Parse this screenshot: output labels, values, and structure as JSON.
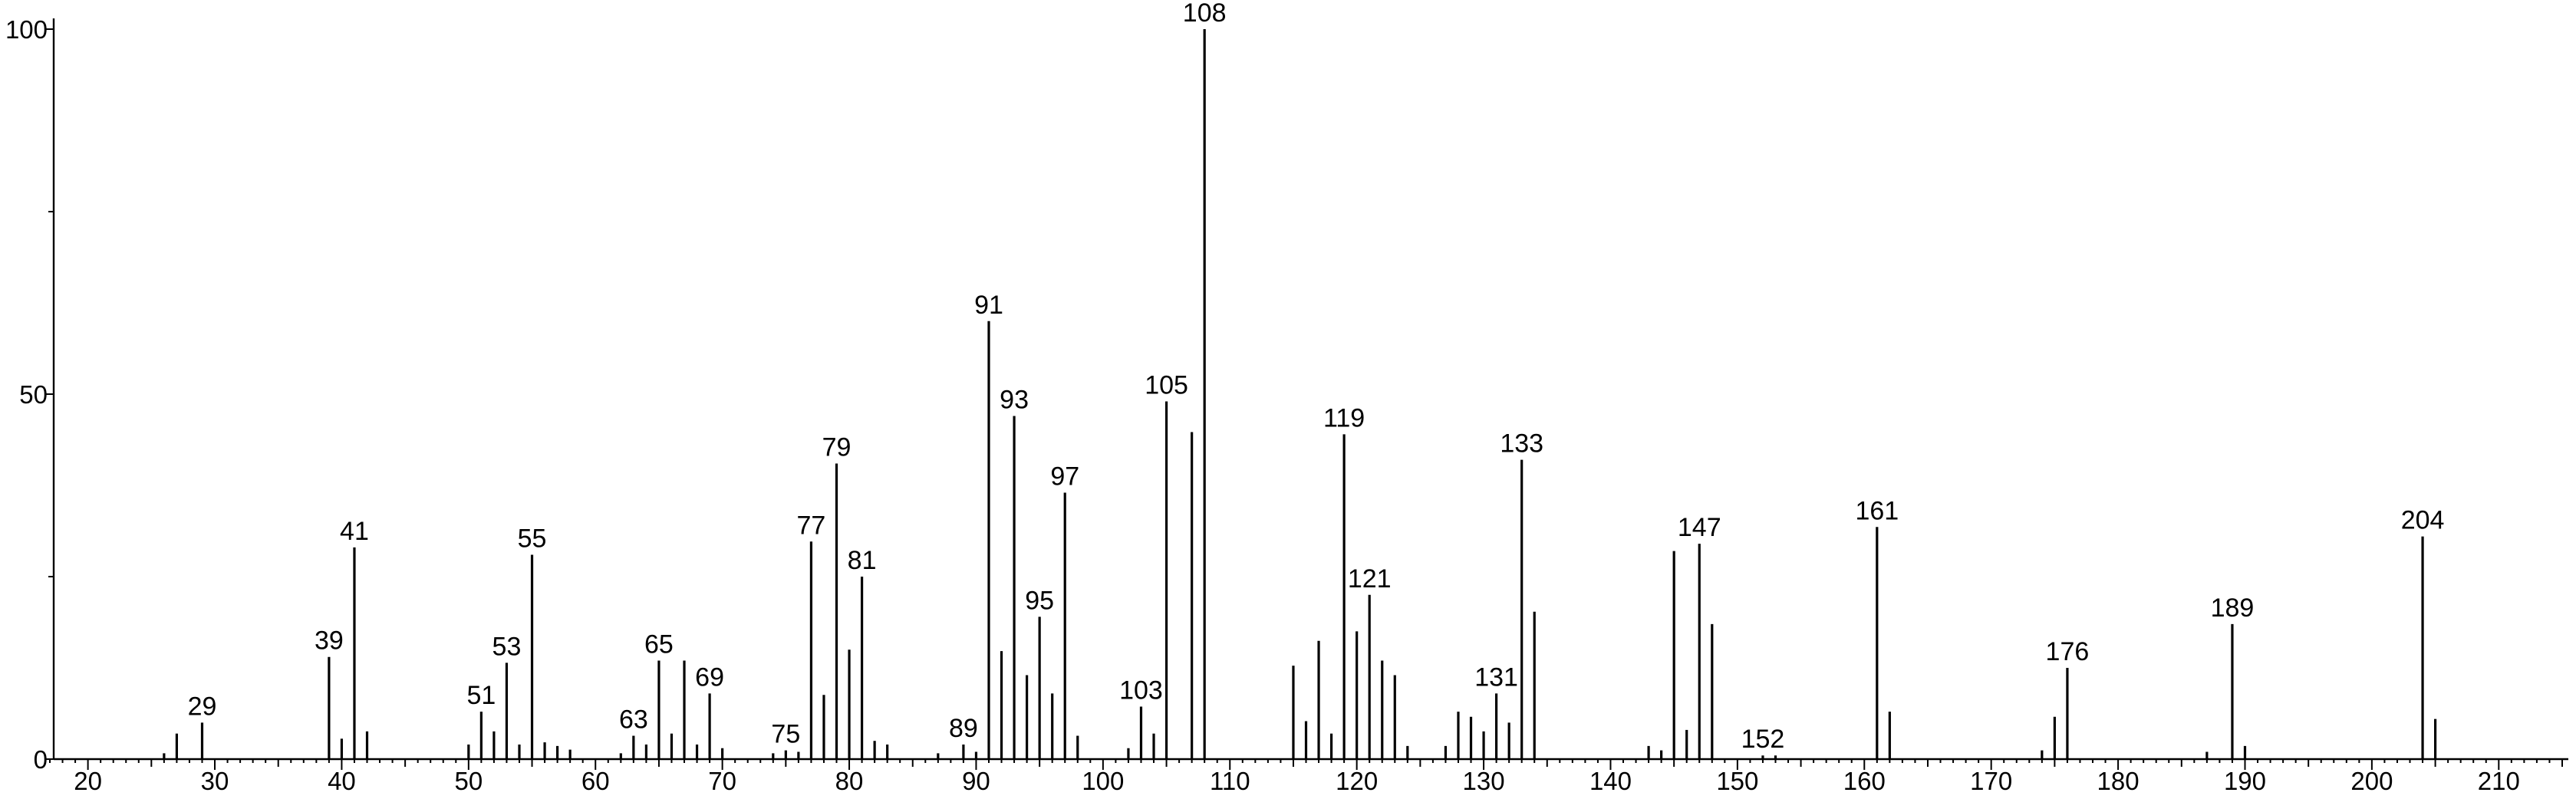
{
  "chart_data": {
    "type": "bar",
    "title": "",
    "xlabel": "",
    "ylabel": "",
    "xlim": [
      17,
      215
    ],
    "ylim": [
      0,
      100
    ],
    "x_ticks": [
      20,
      30,
      40,
      50,
      60,
      70,
      80,
      90,
      100,
      110,
      120,
      130,
      140,
      150,
      160,
      170,
      180,
      190,
      200,
      210
    ],
    "y_ticks": [
      0,
      50,
      100
    ],
    "grid": false,
    "legend": "none",
    "series": [
      {
        "peaks": [
          {
            "x": 26,
            "y": 0.8
          },
          {
            "x": 27,
            "y": 3.5
          },
          {
            "x": 29,
            "y": 5.0
          },
          {
            "x": 39,
            "y": 14.0
          },
          {
            "x": 40,
            "y": 2.8
          },
          {
            "x": 41,
            "y": 29.0
          },
          {
            "x": 42,
            "y": 3.8
          },
          {
            "x": 50,
            "y": 2.0
          },
          {
            "x": 51,
            "y": 6.5
          },
          {
            "x": 52,
            "y": 3.8
          },
          {
            "x": 53,
            "y": 13.2
          },
          {
            "x": 54,
            "y": 2.0
          },
          {
            "x": 55,
            "y": 28.0
          },
          {
            "x": 56,
            "y": 2.3
          },
          {
            "x": 57,
            "y": 1.8
          },
          {
            "x": 58,
            "y": 1.3
          },
          {
            "x": 62,
            "y": 0.8
          },
          {
            "x": 63,
            "y": 3.2
          },
          {
            "x": 64,
            "y": 2.0
          },
          {
            "x": 65,
            "y": 13.5
          },
          {
            "x": 66,
            "y": 3.5
          },
          {
            "x": 67,
            "y": 13.5
          },
          {
            "x": 68,
            "y": 2.0
          },
          {
            "x": 69,
            "y": 9.0
          },
          {
            "x": 70,
            "y": 1.5
          },
          {
            "x": 74,
            "y": 0.8
          },
          {
            "x": 75,
            "y": 1.2
          },
          {
            "x": 76,
            "y": 1.0
          },
          {
            "x": 77,
            "y": 29.8
          },
          {
            "x": 78,
            "y": 8.8
          },
          {
            "x": 79,
            "y": 40.5
          },
          {
            "x": 80,
            "y": 15.0
          },
          {
            "x": 81,
            "y": 25.0
          },
          {
            "x": 82,
            "y": 2.5
          },
          {
            "x": 83,
            "y": 2.0
          },
          {
            "x": 87,
            "y": 0.8
          },
          {
            "x": 89,
            "y": 2.0
          },
          {
            "x": 90,
            "y": 1.0
          },
          {
            "x": 91,
            "y": 60.0
          },
          {
            "x": 92,
            "y": 14.8
          },
          {
            "x": 93,
            "y": 47.0
          },
          {
            "x": 94,
            "y": 11.5
          },
          {
            "x": 95,
            "y": 19.5
          },
          {
            "x": 96,
            "y": 9.0
          },
          {
            "x": 97,
            "y": 36.5
          },
          {
            "x": 98,
            "y": 3.2
          },
          {
            "x": 102,
            "y": 1.5
          },
          {
            "x": 103,
            "y": 7.2
          },
          {
            "x": 104,
            "y": 3.5
          },
          {
            "x": 105,
            "y": 49.0
          },
          {
            "x": 107,
            "y": 44.8
          },
          {
            "x": 108,
            "y": 100.0
          },
          {
            "x": 115,
            "y": 12.8
          },
          {
            "x": 116,
            "y": 5.2
          },
          {
            "x": 117,
            "y": 16.2
          },
          {
            "x": 118,
            "y": 3.5
          },
          {
            "x": 119,
            "y": 44.5
          },
          {
            "x": 120,
            "y": 17.5
          },
          {
            "x": 121,
            "y": 22.5
          },
          {
            "x": 122,
            "y": 13.5
          },
          {
            "x": 123,
            "y": 11.5
          },
          {
            "x": 124,
            "y": 1.8
          },
          {
            "x": 127,
            "y": 1.8
          },
          {
            "x": 128,
            "y": 6.5
          },
          {
            "x": 129,
            "y": 5.8
          },
          {
            "x": 130,
            "y": 3.8
          },
          {
            "x": 131,
            "y": 9.0
          },
          {
            "x": 132,
            "y": 5.0
          },
          {
            "x": 133,
            "y": 41.0
          },
          {
            "x": 134,
            "y": 20.2
          },
          {
            "x": 143,
            "y": 1.8
          },
          {
            "x": 144,
            "y": 1.2
          },
          {
            "x": 145,
            "y": 28.5
          },
          {
            "x": 146,
            "y": 4.0
          },
          {
            "x": 147,
            "y": 29.5
          },
          {
            "x": 148,
            "y": 18.5
          },
          {
            "x": 152,
            "y": 0.5
          },
          {
            "x": 153,
            "y": 0.5
          },
          {
            "x": 161,
            "y": 31.8
          },
          {
            "x": 162,
            "y": 6.5
          },
          {
            "x": 174,
            "y": 1.2
          },
          {
            "x": 175,
            "y": 5.8
          },
          {
            "x": 176,
            "y": 12.5
          },
          {
            "x": 187,
            "y": 1.0
          },
          {
            "x": 189,
            "y": 18.5
          },
          {
            "x": 190,
            "y": 1.8
          },
          {
            "x": 204,
            "y": 30.5
          },
          {
            "x": 205,
            "y": 5.5
          }
        ]
      }
    ],
    "annotations": [
      {
        "x": 29,
        "text": "29"
      },
      {
        "x": 39,
        "text": "39"
      },
      {
        "x": 41,
        "text": "41"
      },
      {
        "x": 51,
        "text": "51"
      },
      {
        "x": 53,
        "text": "53"
      },
      {
        "x": 55,
        "text": "55"
      },
      {
        "x": 63,
        "text": "63"
      },
      {
        "x": 65,
        "text": "65"
      },
      {
        "x": 69,
        "text": "69"
      },
      {
        "x": 75,
        "text": "75"
      },
      {
        "x": 77,
        "text": "77"
      },
      {
        "x": 79,
        "text": "79"
      },
      {
        "x": 81,
        "text": "81"
      },
      {
        "x": 89,
        "text": "89"
      },
      {
        "x": 91,
        "text": "91"
      },
      {
        "x": 93,
        "text": "93"
      },
      {
        "x": 95,
        "text": "95"
      },
      {
        "x": 97,
        "text": "97"
      },
      {
        "x": 103,
        "text": "103"
      },
      {
        "x": 105,
        "text": "105"
      },
      {
        "x": 108,
        "text": "108"
      },
      {
        "x": 119,
        "text": "119"
      },
      {
        "x": 121,
        "text": "121"
      },
      {
        "x": 131,
        "text": "131"
      },
      {
        "x": 133,
        "text": "133"
      },
      {
        "x": 147,
        "text": "147"
      },
      {
        "x": 152,
        "text": "152"
      },
      {
        "x": 161,
        "text": "161"
      },
      {
        "x": 176,
        "text": "176"
      },
      {
        "x": 189,
        "text": "189"
      },
      {
        "x": 204,
        "text": "204"
      }
    ]
  }
}
